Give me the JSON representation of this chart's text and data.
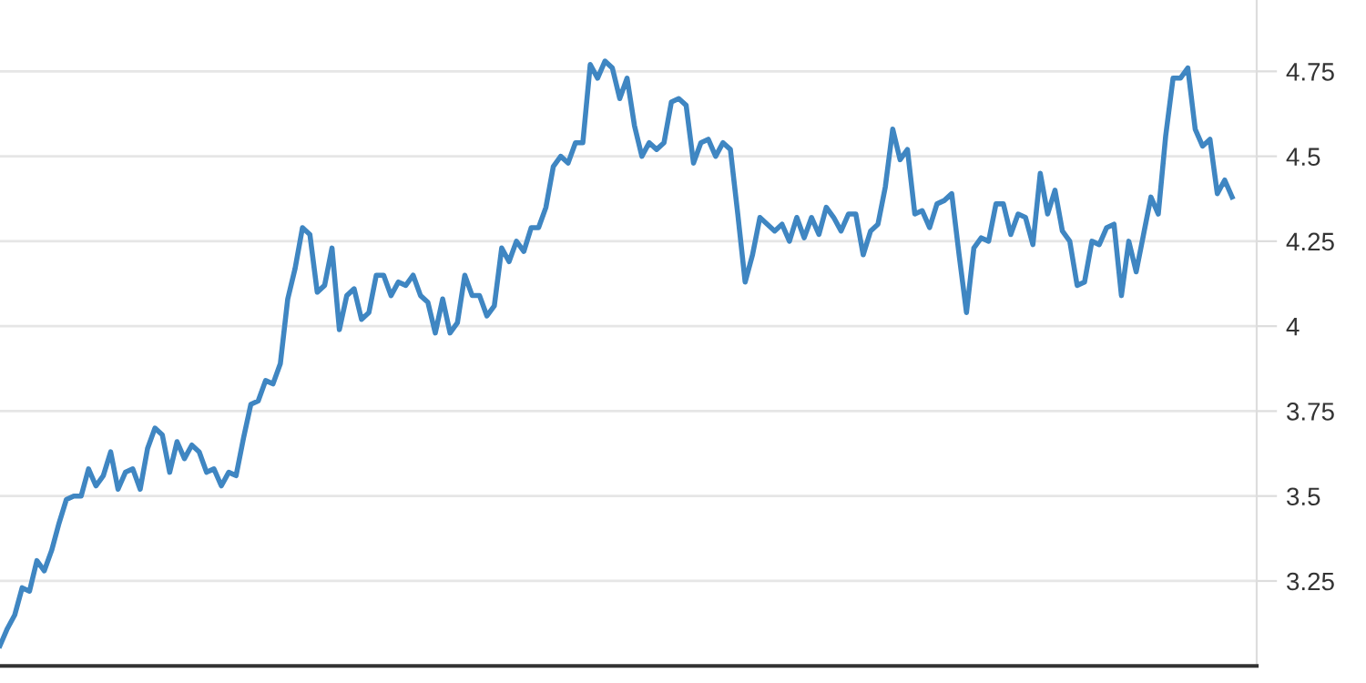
{
  "chart_data": {
    "type": "line",
    "tick_labels": "y",
    "grid": "y",
    "legend": false,
    "marker": "none",
    "line_style": "solid",
    "categories": [
      null,
      null,
      null,
      null,
      null,
      null,
      null,
      null,
      null,
      null,
      null,
      null,
      null,
      null,
      null,
      null,
      null,
      null,
      null,
      null,
      null,
      null,
      null,
      null,
      null,
      null,
      null,
      null,
      null,
      null,
      null,
      null,
      null,
      null,
      null,
      null,
      null,
      null,
      null,
      null,
      null,
      null,
      null,
      null,
      null,
      null,
      null,
      null,
      null,
      null,
      null,
      null,
      null,
      null,
      null,
      null,
      null,
      null,
      null,
      null,
      null,
      null,
      null,
      null,
      null,
      null,
      null,
      null,
      null,
      null,
      null,
      null,
      null,
      null,
      null,
      null,
      null,
      null,
      null,
      null,
      null,
      null,
      null,
      null,
      null,
      null,
      null,
      null,
      null,
      null,
      null,
      null,
      null,
      null,
      null,
      null,
      null,
      null,
      null,
      null,
      null,
      null,
      null,
      null,
      null,
      null,
      null,
      null,
      null,
      null,
      null,
      null,
      null,
      null,
      null,
      null,
      null,
      null,
      null,
      null,
      null,
      null,
      null,
      null,
      null,
      null,
      null,
      null,
      null,
      null,
      null,
      null,
      null,
      null,
      null,
      null,
      null,
      null,
      null,
      null,
      null,
      null,
      null,
      null,
      null,
      null,
      null,
      null,
      null,
      null,
      null,
      null,
      null,
      null,
      null,
      null,
      null,
      null,
      null,
      null,
      null,
      null,
      null,
      null,
      null,
      null,
      null,
      null
    ],
    "ylim": [
      3.0,
      4.96
    ],
    "yticks": [
      3.25,
      3.5,
      3.75,
      4,
      4.25,
      4.5,
      4.75
    ],
    "series": [
      {
        "color": "#3f86c2",
        "values": [
          3.06,
          3.11,
          3.15,
          3.23,
          3.22,
          3.31,
          3.28,
          3.34,
          3.42,
          3.49,
          3.5,
          3.5,
          3.58,
          3.53,
          3.56,
          3.63,
          3.52,
          3.57,
          3.58,
          3.52,
          3.64,
          3.7,
          3.68,
          3.57,
          3.66,
          3.61,
          3.65,
          3.63,
          3.57,
          3.58,
          3.53,
          3.57,
          3.56,
          3.67,
          3.77,
          3.78,
          3.84,
          3.83,
          3.89,
          4.08,
          4.17,
          4.29,
          4.27,
          4.1,
          4.12,
          4.23,
          3.99,
          4.09,
          4.11,
          4.02,
          4.04,
          4.15,
          4.15,
          4.09,
          4.13,
          4.12,
          4.15,
          4.09,
          4.07,
          3.98,
          4.08,
          3.98,
          4.01,
          4.15,
          4.09,
          4.09,
          4.03,
          4.06,
          4.23,
          4.19,
          4.25,
          4.22,
          4.29,
          4.29,
          4.35,
          4.47,
          4.5,
          4.48,
          4.54,
          4.54,
          4.77,
          4.73,
          4.78,
          4.76,
          4.67,
          4.73,
          4.59,
          4.5,
          4.54,
          4.52,
          4.54,
          4.66,
          4.67,
          4.65,
          4.48,
          4.54,
          4.55,
          4.5,
          4.54,
          4.52,
          4.33,
          4.13,
          4.21,
          4.32,
          4.3,
          4.28,
          4.3,
          4.25,
          4.32,
          4.26,
          4.32,
          4.27,
          4.35,
          4.32,
          4.28,
          4.33,
          4.33,
          4.21,
          4.28,
          4.3,
          4.41,
          4.58,
          4.49,
          4.52,
          4.33,
          4.34,
          4.29,
          4.36,
          4.37,
          4.39,
          4.21,
          4.04,
          4.23,
          4.26,
          4.25,
          4.36,
          4.36,
          4.27,
          4.33,
          4.32,
          4.24,
          4.45,
          4.33,
          4.4,
          4.28,
          4.25,
          4.12,
          4.13,
          4.25,
          4.24,
          4.29,
          4.3,
          4.09,
          4.25,
          4.16,
          4.27,
          4.38,
          4.33,
          4.56,
          4.73,
          4.73,
          4.76,
          4.58,
          4.53,
          4.55,
          4.39,
          4.43,
          4.38
        ]
      }
    ]
  }
}
